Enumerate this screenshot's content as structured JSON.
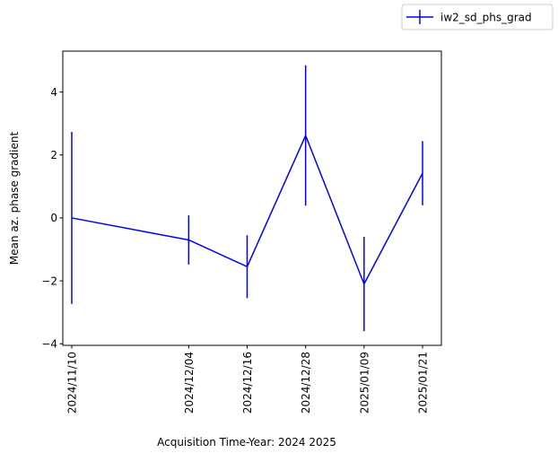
{
  "chart_data": {
    "type": "line",
    "title": "",
    "xlabel": "Acquisition Time-Year: 2024 2025",
    "ylabel": "Mean az. phase gradient",
    "x": [
      "2024/11/10",
      "2024/12/04",
      "2024/12/16",
      "2024/12/28",
      "2025/01/09",
      "2025/01/21"
    ],
    "xticks": [
      "2024/11/10",
      "2024/12/04",
      "2024/12/16",
      "2024/12/28",
      "2025/01/09",
      "2025/01/21"
    ],
    "yticks": [
      -4,
      -2,
      0,
      2,
      4
    ],
    "ylim": [
      -4.05,
      5.3
    ],
    "series": [
      {
        "name": "iw2_sd_phs_grad",
        "color": "#0000ff",
        "values": [
          0.0,
          -0.7,
          -1.55,
          2.62,
          -2.1,
          1.42
        ],
        "yerr": [
          2.73,
          0.78,
          1.0,
          2.23,
          1.5,
          1.02
        ]
      }
    ],
    "legend_position": "top-right",
    "grid": false
  }
}
